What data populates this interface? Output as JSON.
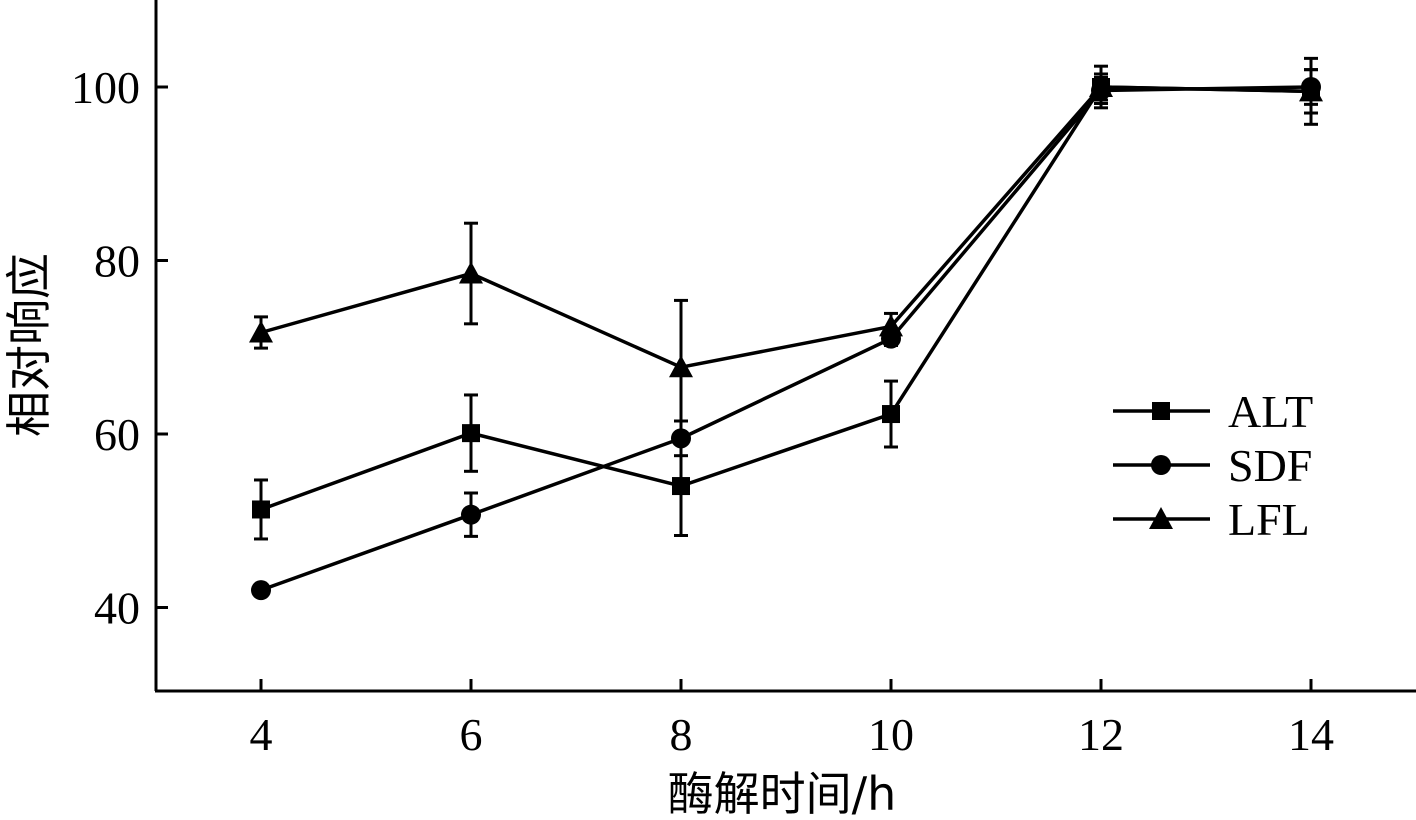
{
  "chart_data": {
    "type": "line",
    "title": "",
    "xlabel": "酶解时间/h",
    "ylabel": "相对响应",
    "x": [
      4,
      6,
      8,
      10,
      12,
      14
    ],
    "xlim": [
      3,
      15
    ],
    "ylim": [
      30,
      110
    ],
    "xticks": [
      4,
      6,
      8,
      10,
      12,
      14
    ],
    "yticks": [
      40,
      60,
      80,
      100
    ],
    "x_tick_labels": [
      "4",
      "6",
      "8",
      "10",
      "12",
      "14"
    ],
    "y_tick_labels": [
      "40",
      "60",
      "80",
      "100"
    ],
    "grid": false,
    "legend_position": "right",
    "series": [
      {
        "name": "ALT",
        "marker": "square",
        "values": [
          51.3,
          60.1,
          54.0,
          62.3,
          100.0,
          99.5
        ],
        "errors": [
          3.4,
          4.4,
          5.7,
          3.8,
          2.4,
          3.8
        ]
      },
      {
        "name": "SDF",
        "marker": "circle",
        "values": [
          42.0,
          50.7,
          59.5,
          71.0,
          99.6,
          100.0
        ],
        "errors": [
          0.0,
          2.5,
          2.0,
          0.8,
          1.5,
          2.0
        ]
      },
      {
        "name": "LFL",
        "marker": "triangle",
        "values": [
          71.7,
          78.5,
          67.7,
          72.4,
          100.0,
          99.5
        ],
        "errors": [
          1.8,
          5.8,
          7.7,
          1.5,
          1.5,
          2.5
        ]
      }
    ]
  },
  "colors": {
    "ink": "#000000",
    "background": "#ffffff"
  }
}
